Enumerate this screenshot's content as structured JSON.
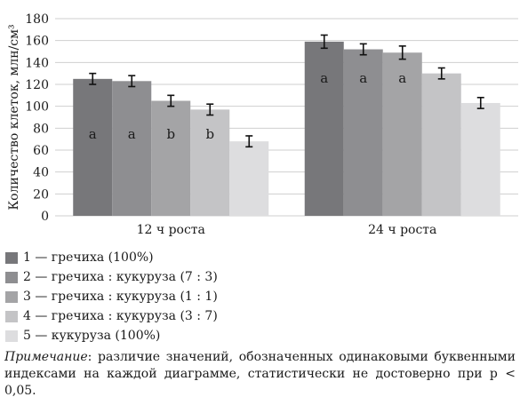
{
  "chart_data": {
    "type": "bar",
    "ylabel": "Количество клеток, млн/см³",
    "ylim": [
      0,
      180
    ],
    "yticks": [
      0,
      20,
      40,
      60,
      80,
      100,
      120,
      140,
      160,
      180
    ],
    "grid": true,
    "categories": [
      "12 ч роста",
      "24 ч роста"
    ],
    "series": [
      {
        "name": "1 — гречиха (100%)",
        "color": "#77777a",
        "values": [
          125,
          159
        ],
        "errors": [
          5,
          6
        ],
        "letters": [
          "a",
          "a"
        ]
      },
      {
        "name": "2 — гречиха : кукуруза (7 : 3)",
        "color": "#8e8e91",
        "values": [
          123,
          152
        ],
        "errors": [
          5,
          5
        ],
        "letters": [
          "a",
          "a"
        ]
      },
      {
        "name": "3 — гречиха : кукуруза (1 : 1)",
        "color": "#a4a4a6",
        "values": [
          105,
          149
        ],
        "errors": [
          5,
          6
        ],
        "letters": [
          "b",
          "a"
        ]
      },
      {
        "name": "4 — гречиха : кукуруза (3 : 7)",
        "color": "#c4c4c6",
        "values": [
          97,
          130
        ],
        "errors": [
          5,
          5
        ],
        "letters": [
          "b",
          ""
        ]
      },
      {
        "name": "5 — кукуруза (100%)",
        "color": "#dddddf",
        "values": [
          68,
          103
        ],
        "errors": [
          5,
          5
        ],
        "letters": [
          "",
          ""
        ]
      }
    ]
  },
  "note": {
    "head": "Примечание",
    "text": ": различие значений, обозначенных одинаковыми буквенными индексами на каждой диаграмме, статистически не достоверно при р < 0,05."
  }
}
